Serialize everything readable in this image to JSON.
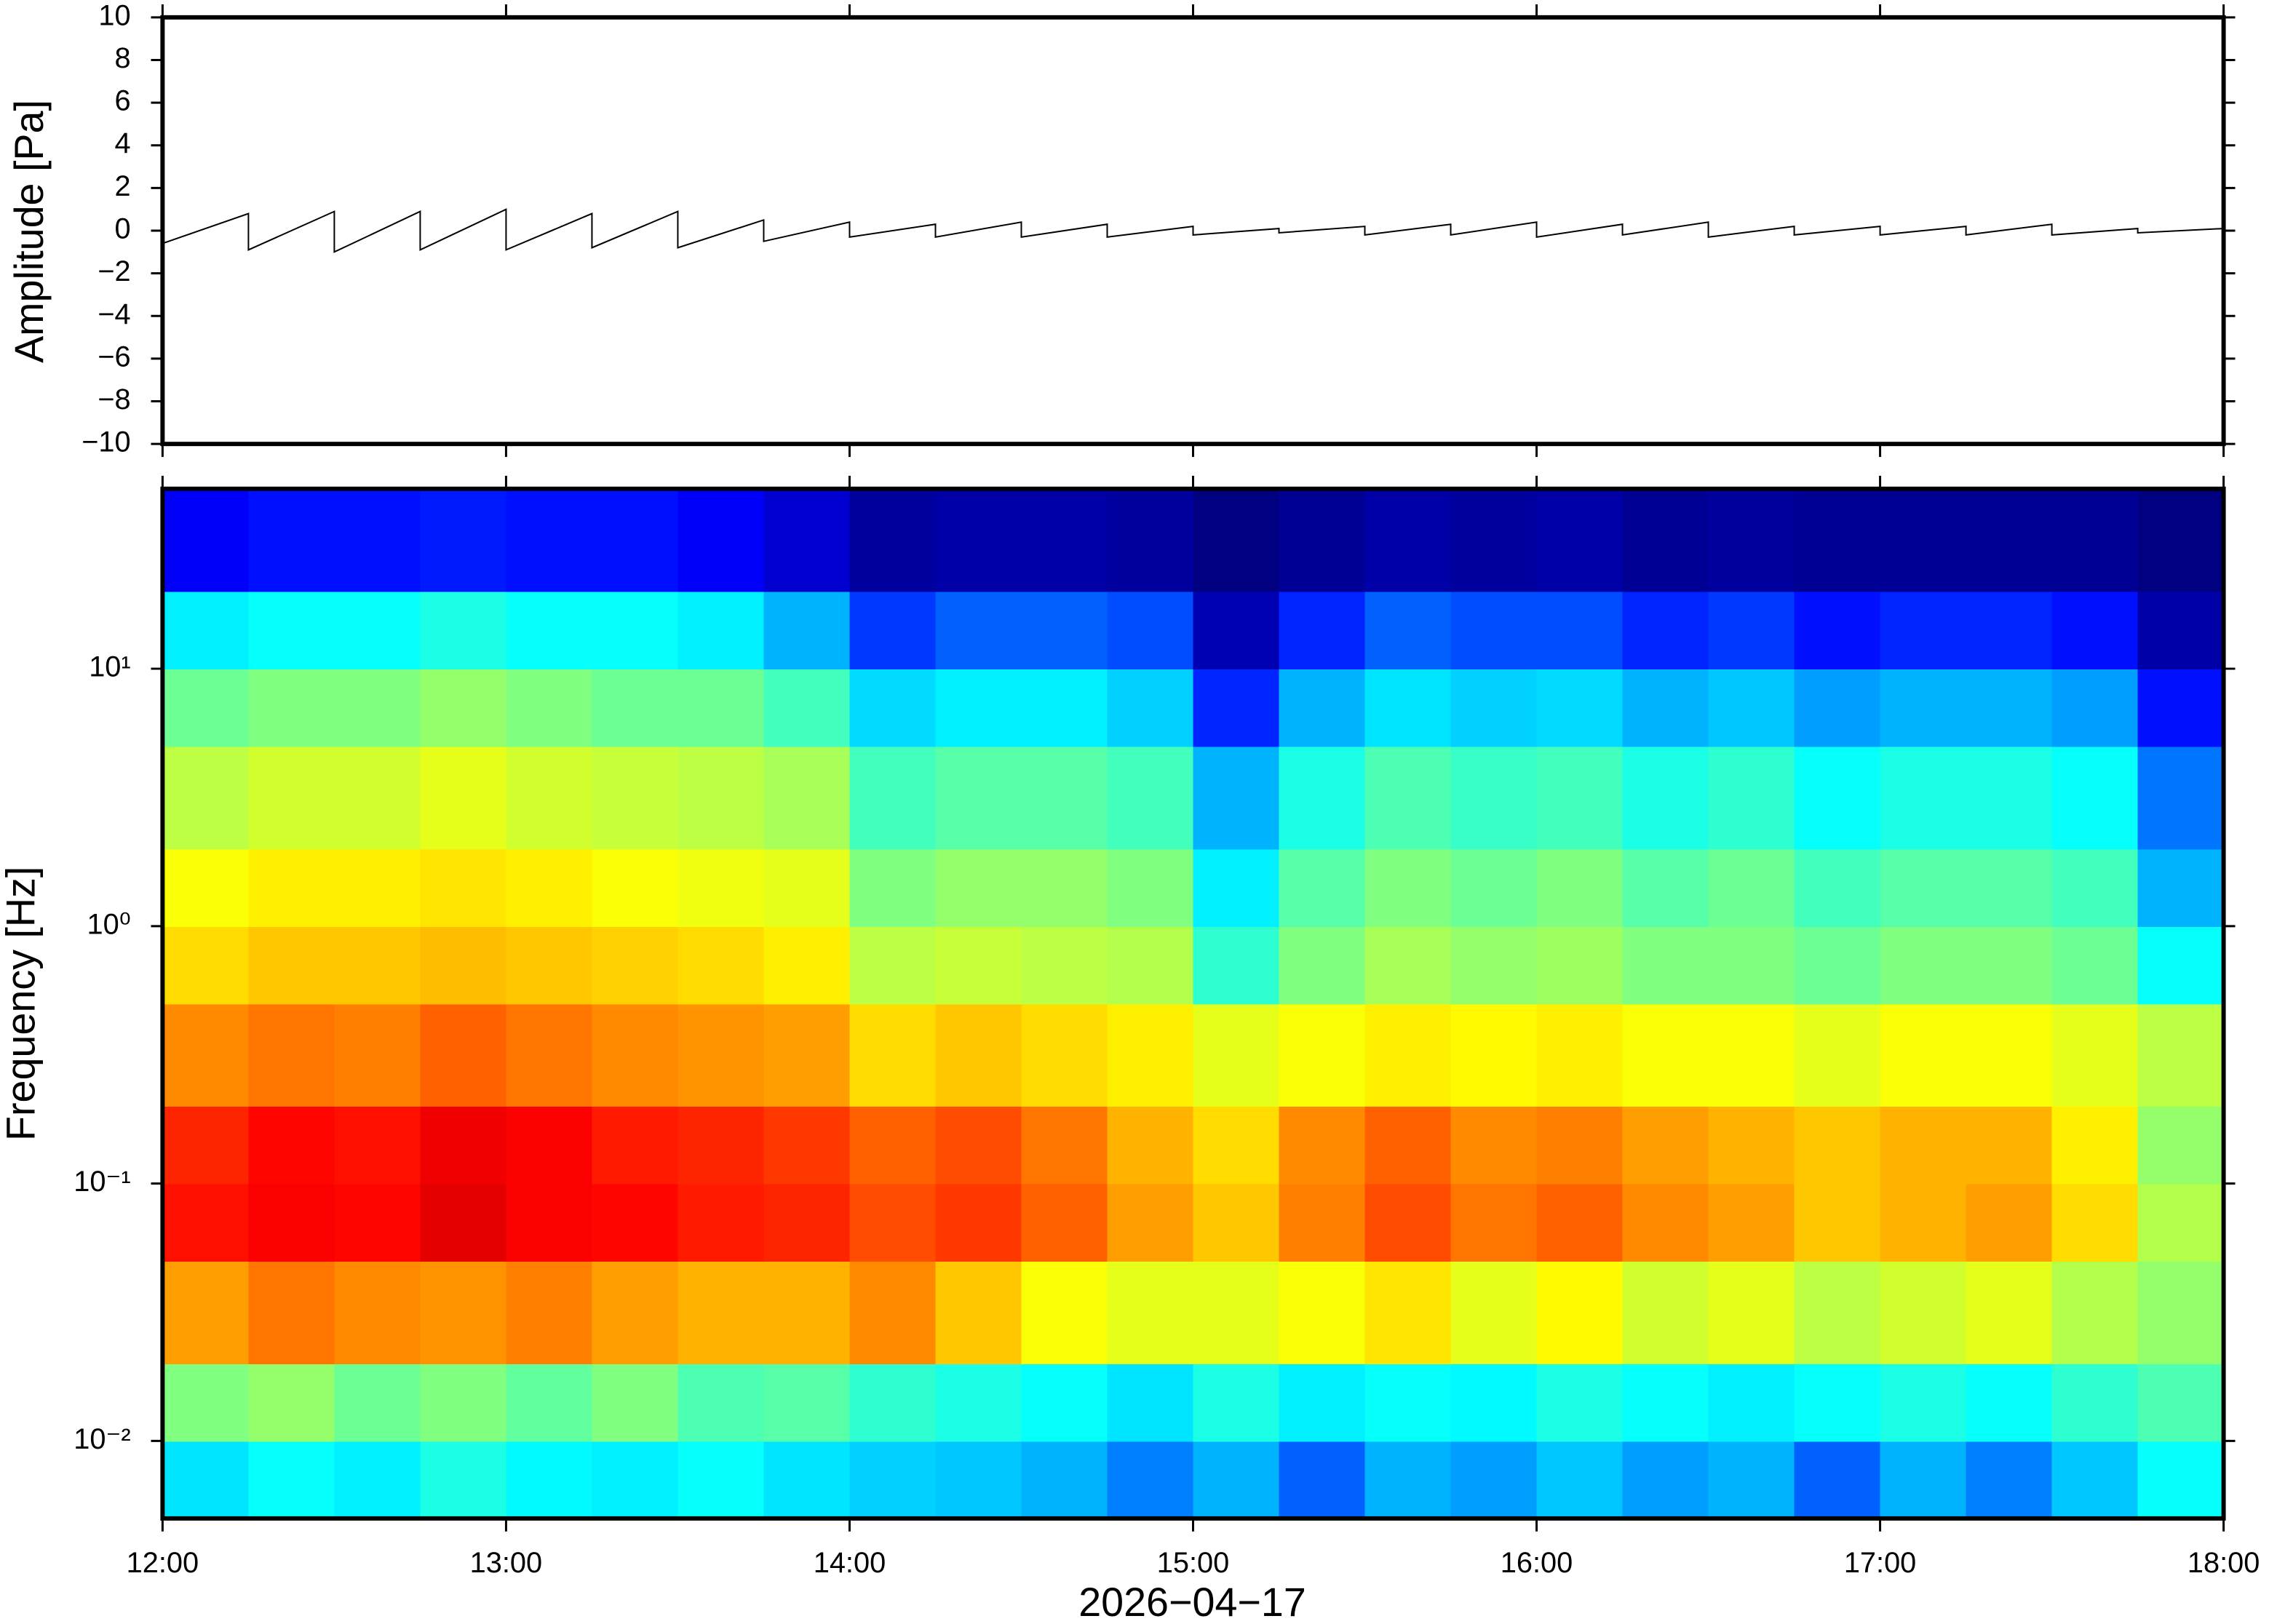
{
  "chart_data": [
    {
      "type": "line",
      "ylabel": "Amplitude [Pa]",
      "xlim": [
        12,
        18
      ],
      "x": [
        12,
        12.25,
        12.5,
        12.75,
        13,
        13.25,
        13.5,
        13.75,
        14,
        14.25,
        14.5,
        14.75,
        15,
        15.25,
        15.5,
        15.75,
        16,
        16.25,
        16.5,
        16.75,
        17,
        17.25,
        17.5,
        17.75,
        18
      ],
      "series": [
        {
          "color": "#000000",
          "values": [
            0.5,
            0.8,
            0.9,
            0.9,
            1.0,
            0.8,
            0.9,
            0.5,
            0.4,
            0.3,
            0.4,
            0.3,
            0.2,
            0.1,
            0.2,
            0.3,
            0.4,
            0.3,
            0.4,
            0.2,
            0.2,
            0.2,
            0.3,
            0.1,
            0.1
          ]
        },
        {
          "color": "#000000",
          "values": [
            -0.6,
            -0.9,
            -1.0,
            -0.9,
            -0.9,
            -0.8,
            -0.8,
            -0.5,
            -0.3,
            -0.3,
            -0.3,
            -0.3,
            -0.2,
            -0.1,
            -0.2,
            -0.2,
            -0.3,
            -0.2,
            -0.3,
            -0.2,
            -0.2,
            -0.2,
            -0.2,
            -0.1,
            -0.1
          ]
        }
      ],
      "ylim": [
        -10,
        10
      ],
      "yticks": [
        {
          "value": -10,
          "label": "−10"
        },
        {
          "value": -8,
          "label": "−8"
        },
        {
          "value": -6,
          "label": "−6"
        },
        {
          "value": -4,
          "label": "−4"
        },
        {
          "value": -2,
          "label": "−2"
        },
        0,
        2,
        4,
        6,
        8,
        10
      ]
    },
    {
      "type": "heatmap",
      "ylabel": "Frequency [Hz]",
      "xlabel": "2026−04−17",
      "colormap": "jet",
      "log_y": true,
      "xlim": [
        12,
        18
      ],
      "xticks": [
        {
          "value": 12,
          "label": "12:00"
        },
        {
          "value": 13,
          "label": "13:00"
        },
        {
          "value": 14,
          "label": "14:00"
        },
        {
          "value": 15,
          "label": "15:00"
        },
        {
          "value": 16,
          "label": "16:00"
        },
        {
          "value": 17,
          "label": "17:00"
        },
        {
          "value": 18,
          "label": "18:00"
        }
      ],
      "ylim": [
        0.005,
        50
      ],
      "yticks": [
        {
          "value": 0.01,
          "label": "10⁻²"
        },
        {
          "value": 0.1,
          "label": "10⁻¹"
        },
        {
          "value": 1,
          "label": "10⁰"
        },
        {
          "value": 10,
          "label": "10¹"
        }
      ],
      "x_bins": [
        12,
        12.25,
        12.5,
        12.75,
        13,
        13.25,
        13.5,
        13.75,
        14,
        14.25,
        14.5,
        14.75,
        15,
        15.25,
        15.5,
        15.75,
        16,
        16.25,
        16.5,
        16.75,
        17,
        17.25,
        17.5,
        17.75,
        18
      ],
      "y_bins": [
        0.005,
        0.01,
        0.02,
        0.05,
        0.1,
        0.2,
        0.5,
        1,
        2,
        5,
        10,
        20,
        50
      ],
      "values": [
        [
          0.35,
          0.38,
          0.36,
          0.4,
          0.37,
          0.36,
          0.38,
          0.35,
          0.33,
          0.32,
          0.3,
          0.25,
          0.3,
          0.22,
          0.3,
          0.28,
          0.32,
          0.28,
          0.3,
          0.22,
          0.3,
          0.25,
          0.32,
          0.38
        ],
        [
          0.5,
          0.52,
          0.48,
          0.5,
          0.47,
          0.5,
          0.45,
          0.46,
          0.42,
          0.4,
          0.38,
          0.35,
          0.4,
          0.36,
          0.38,
          0.37,
          0.4,
          0.38,
          0.36,
          0.38,
          0.4,
          0.38,
          0.42,
          0.45
        ],
        [
          0.72,
          0.76,
          0.74,
          0.73,
          0.75,
          0.72,
          0.7,
          0.7,
          0.74,
          0.68,
          0.62,
          0.6,
          0.6,
          0.62,
          0.65,
          0.6,
          0.63,
          0.58,
          0.6,
          0.56,
          0.58,
          0.6,
          0.55,
          0.52
        ],
        [
          0.86,
          0.88,
          0.87,
          0.9,
          0.88,
          0.87,
          0.85,
          0.84,
          0.8,
          0.82,
          0.78,
          0.72,
          0.68,
          0.75,
          0.8,
          0.76,
          0.78,
          0.74,
          0.72,
          0.68,
          0.7,
          0.72,
          0.66,
          0.55
        ],
        [
          0.84,
          0.87,
          0.86,
          0.89,
          0.88,
          0.85,
          0.84,
          0.82,
          0.78,
          0.8,
          0.76,
          0.7,
          0.66,
          0.74,
          0.78,
          0.74,
          0.75,
          0.72,
          0.7,
          0.68,
          0.7,
          0.7,
          0.64,
          0.52
        ],
        [
          0.74,
          0.76,
          0.75,
          0.78,
          0.76,
          0.74,
          0.73,
          0.72,
          0.66,
          0.68,
          0.66,
          0.64,
          0.6,
          0.62,
          0.64,
          0.63,
          0.64,
          0.62,
          0.62,
          0.6,
          0.62,
          0.62,
          0.6,
          0.56
        ],
        [
          0.66,
          0.68,
          0.68,
          0.69,
          0.68,
          0.67,
          0.66,
          0.64,
          0.56,
          0.57,
          0.56,
          0.55,
          0.42,
          0.5,
          0.54,
          0.52,
          0.53,
          0.5,
          0.5,
          0.48,
          0.5,
          0.5,
          0.48,
          0.38
        ],
        [
          0.62,
          0.64,
          0.64,
          0.65,
          0.64,
          0.62,
          0.61,
          0.6,
          0.5,
          0.52,
          0.52,
          0.5,
          0.36,
          0.46,
          0.5,
          0.48,
          0.5,
          0.46,
          0.48,
          0.44,
          0.46,
          0.46,
          0.44,
          0.3
        ],
        [
          0.56,
          0.58,
          0.58,
          0.6,
          0.58,
          0.57,
          0.56,
          0.54,
          0.44,
          0.46,
          0.46,
          0.44,
          0.3,
          0.4,
          0.45,
          0.43,
          0.44,
          0.4,
          0.42,
          0.38,
          0.4,
          0.4,
          0.38,
          0.24
        ],
        [
          0.48,
          0.5,
          0.5,
          0.52,
          0.5,
          0.48,
          0.48,
          0.44,
          0.34,
          0.36,
          0.36,
          0.33,
          0.16,
          0.3,
          0.35,
          0.33,
          0.34,
          0.3,
          0.32,
          0.28,
          0.3,
          0.3,
          0.28,
          0.14
        ],
        [
          0.36,
          0.38,
          0.38,
          0.4,
          0.38,
          0.38,
          0.36,
          0.3,
          0.18,
          0.22,
          0.22,
          0.2,
          0.05,
          0.16,
          0.22,
          0.2,
          0.2,
          0.16,
          0.18,
          0.14,
          0.16,
          0.16,
          0.14,
          0.04
        ],
        [
          0.12,
          0.14,
          0.14,
          0.15,
          0.14,
          0.14,
          0.12,
          0.08,
          0.03,
          0.04,
          0.04,
          0.03,
          0.0,
          0.02,
          0.04,
          0.03,
          0.04,
          0.02,
          0.03,
          0.02,
          0.02,
          0.02,
          0.02,
          0.0
        ]
      ]
    }
  ]
}
